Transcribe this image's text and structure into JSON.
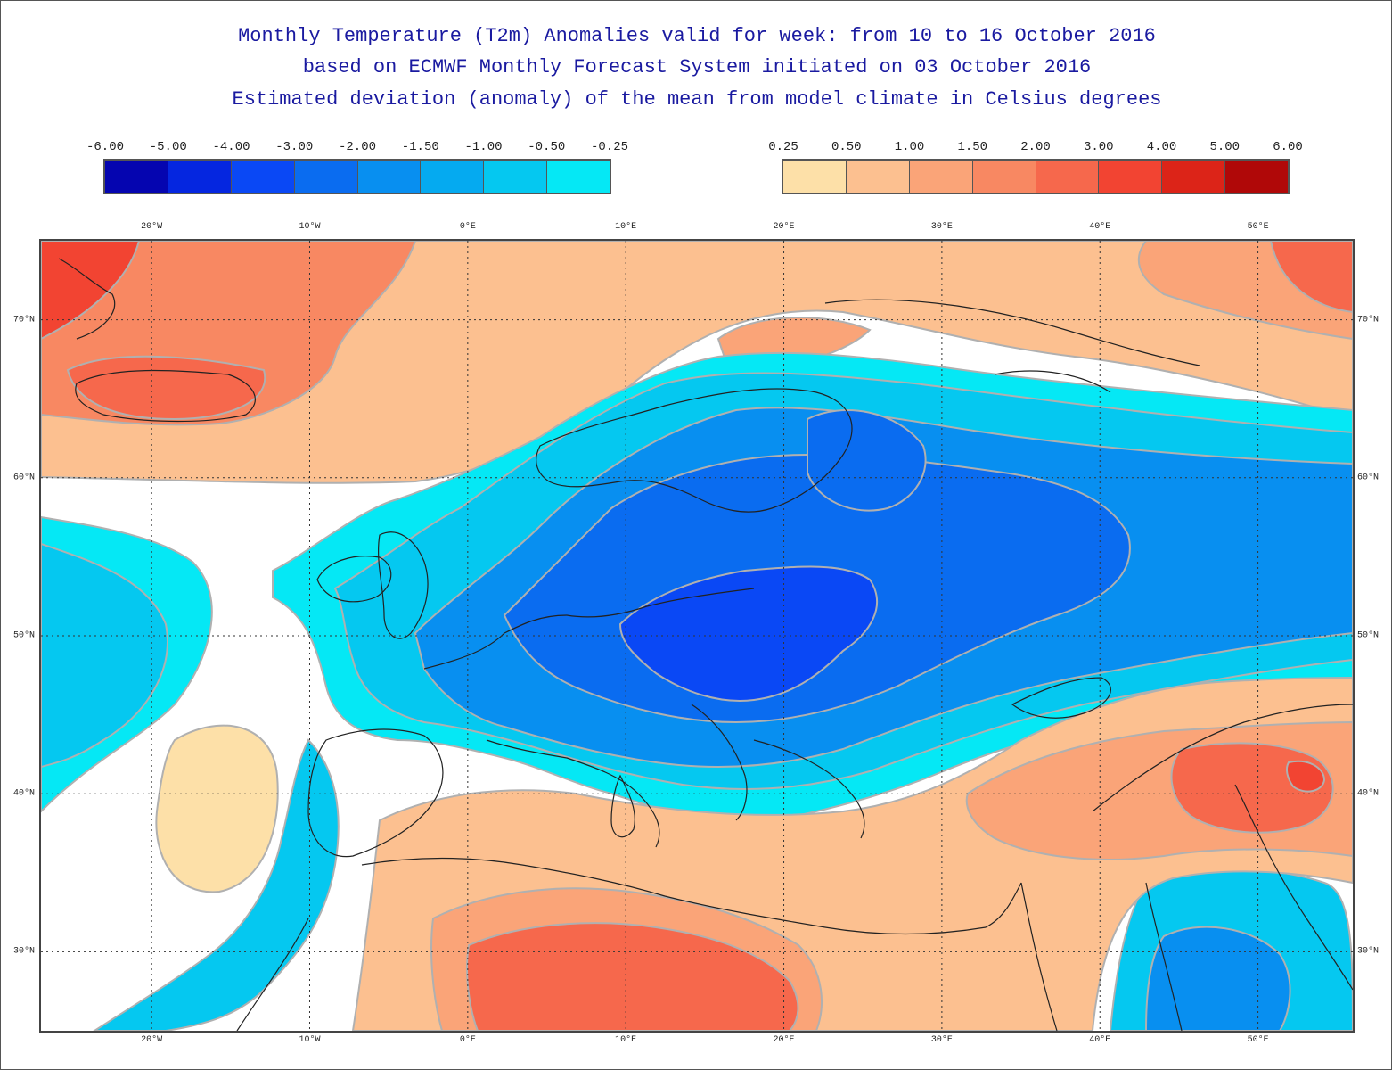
{
  "title": {
    "line1": "Monthly Temperature (T2m) Anomalies valid for week: from 10 to 16 October 2016",
    "line2": "based on ECMWF Monthly Forecast System initiated on 03 October 2016",
    "line3": "Estimated deviation (anomaly) of the mean from model climate in Celsius degrees"
  },
  "legend": {
    "cold": {
      "labels": [
        "-6.00",
        "-5.00",
        "-4.00",
        "-3.00",
        "-2.00",
        "-1.50",
        "-1.00",
        "-0.50",
        "-0.25"
      ],
      "colors": [
        "#0505b0",
        "#0526e0",
        "#0a48f5",
        "#0a6cf0",
        "#088ff0",
        "#05aaf0",
        "#05c8f0",
        "#05e8f5"
      ]
    },
    "warm": {
      "labels": [
        "0.25",
        "0.50",
        "1.00",
        "1.50",
        "2.00",
        "3.00",
        "4.00",
        "5.00",
        "6.00"
      ],
      "colors": [
        "#fde0a8",
        "#fcc090",
        "#faa478",
        "#f88862",
        "#f6684c",
        "#f24432",
        "#dc2418",
        "#b00808"
      ]
    }
  },
  "map": {
    "lon_ticks": [
      "20°W",
      "10°W",
      "0°E",
      "10°E",
      "20°E",
      "30°E",
      "40°E",
      "50°E"
    ],
    "lat_ticks": [
      "70°N",
      "60°N",
      "50°N",
      "40°N",
      "30°N"
    ],
    "lon_values": [
      -20,
      -10,
      0,
      10,
      20,
      30,
      40,
      50
    ],
    "lat_values": [
      70,
      60,
      50,
      40,
      30
    ],
    "lon_range": [
      -27,
      56
    ],
    "lat_range": [
      25,
      75
    ]
  }
}
